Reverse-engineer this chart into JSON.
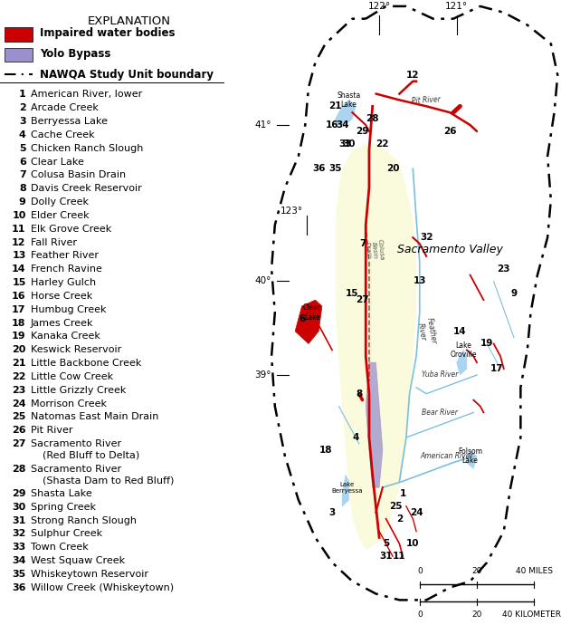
{
  "title": "",
  "figsize": [
    6.2,
    6.9
  ],
  "dpi": 100,
  "legend_title": "EXPLANATION",
  "legend_items": [
    {
      "type": "rect",
      "color": "#cc0000",
      "label": "Impaired water bodies",
      "bold": true
    },
    {
      "type": "rect",
      "color": "#9b8fcc",
      "label": "Yolo Bypass",
      "bold": true
    },
    {
      "type": "dashline",
      "color": "#000000",
      "label": "NAWQA Study Unit boundary",
      "bold": true
    }
  ],
  "numbered_items": [
    {
      "n": 1,
      "label": "American River, lower"
    },
    {
      "n": 2,
      "label": "Arcade Creek"
    },
    {
      "n": 3,
      "label": "Berryessa Lake"
    },
    {
      "n": 4,
      "label": "Cache Creek"
    },
    {
      "n": 5,
      "label": "Chicken Ranch Slough"
    },
    {
      "n": 6,
      "label": "Clear Lake"
    },
    {
      "n": 7,
      "label": "Colusa Basin Drain"
    },
    {
      "n": 8,
      "label": "Davis Creek Reservoir"
    },
    {
      "n": 9,
      "label": "Dolly Creek"
    },
    {
      "n": 10,
      "label": "Elder Creek"
    },
    {
      "n": 11,
      "label": "Elk Grove Creek"
    },
    {
      "n": 12,
      "label": "Fall River"
    },
    {
      "n": 13,
      "label": "Feather River"
    },
    {
      "n": 14,
      "label": "French Ravine"
    },
    {
      "n": 15,
      "label": "Harley Gulch"
    },
    {
      "n": 16,
      "label": "Horse Creek"
    },
    {
      "n": 17,
      "label": "Humbug Creek"
    },
    {
      "n": 18,
      "label": "James Creek"
    },
    {
      "n": 19,
      "label": "Kanaka Creek"
    },
    {
      "n": 20,
      "label": "Keswick Reservoir"
    },
    {
      "n": 21,
      "label": "Little Backbone Creek"
    },
    {
      "n": 22,
      "label": "Little Cow Creek"
    },
    {
      "n": 23,
      "label": "Little Grizzly Creek"
    },
    {
      "n": 24,
      "label": "Morrison Creek"
    },
    {
      "n": 25,
      "label": "Natomas East Main Drain"
    },
    {
      "n": 26,
      "label": "Pit River"
    },
    {
      "n": 27,
      "label": "Sacramento River",
      "sub": "(Red Bluff to Delta)"
    },
    {
      "n": 28,
      "label": "Sacramento River",
      "sub": "(Shasta Dam to Red Bluff)"
    },
    {
      "n": 29,
      "label": "Shasta Lake"
    },
    {
      "n": 30,
      "label": "Spring Creek"
    },
    {
      "n": 31,
      "label": "Strong Ranch Slough"
    },
    {
      "n": 32,
      "label": "Sulphur Creek"
    },
    {
      "n": 33,
      "label": "Town Creek"
    },
    {
      "n": 34,
      "label": "West Squaw Creek"
    },
    {
      "n": 35,
      "label": "Whiskeytown Reservoir"
    },
    {
      "n": 36,
      "label": "Willow Creek (Whiskeytown)"
    }
  ],
  "bg_color": "#ffffff",
  "valley_color": "#fafadc",
  "water_color": "#aad4f0",
  "impaired_color": "#cc0000",
  "bypass_color": "#9b8fcc",
  "river_color": "#7bbfde"
}
